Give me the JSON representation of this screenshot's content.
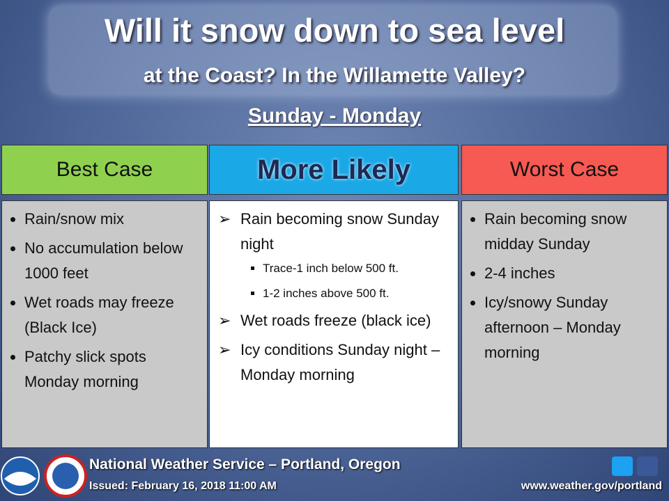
{
  "header": {
    "title_line1": "Will it snow down to sea level",
    "title_line2": "at the Coast?  In the Willamette Valley?",
    "subtitle": "Sunday - Monday"
  },
  "columns": [
    {
      "heading": "Best Case",
      "items": [
        {
          "text": "Rain/snow mix"
        },
        {
          "text": "No accumulation below 1000 feet"
        },
        {
          "text": "Wet roads may freeze (Black Ice)"
        },
        {
          "text": "Patchy slick spots Monday morning"
        }
      ]
    },
    {
      "heading": "More Likely",
      "items": [
        {
          "text": "Rain becoming snow Sunday night",
          "subitems": [
            "Trace-1 inch below 500 ft.",
            "1-2 inches above 500 ft."
          ]
        },
        {
          "text": "Wet roads freeze (black ice)"
        },
        {
          "text": "Icy conditions Sunday night – Monday morning"
        }
      ]
    },
    {
      "heading": "Worst Case",
      "items": [
        {
          "text": "Rain becoming snow midday Sunday"
        },
        {
          "text": "2-4 inches"
        },
        {
          "text": "Icy/snowy Sunday afternoon – Monday morning"
        }
      ]
    }
  ],
  "footer": {
    "org": "National Weather Service – Portland, Oregon",
    "issued": "Issued: February 16, 2018  11:00 AM",
    "url": "www.weather.gov/portland"
  }
}
